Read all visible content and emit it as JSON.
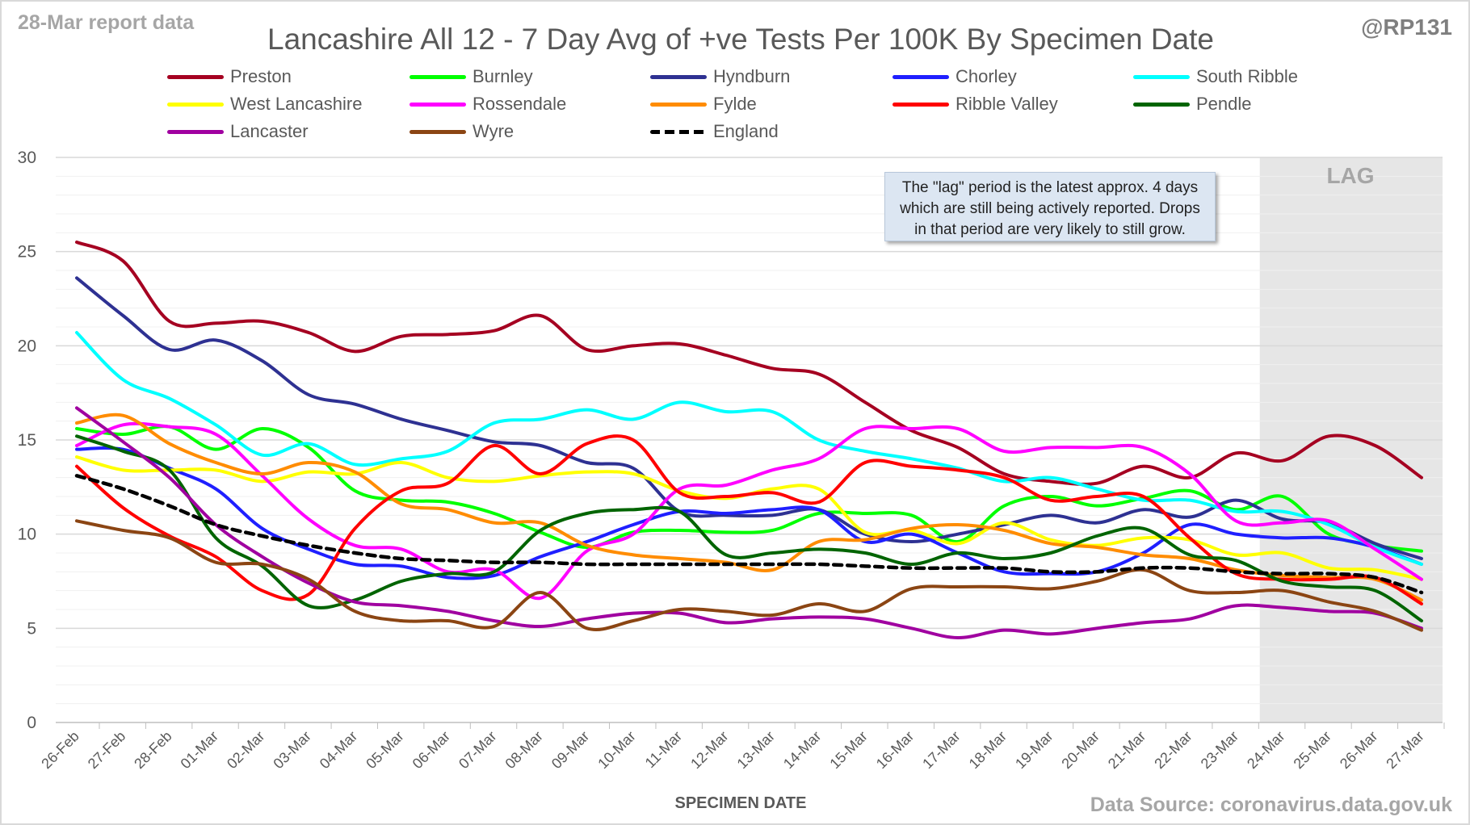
{
  "header": {
    "report_label": "28-Mar report data",
    "handle": "@RP131",
    "source": "Data Source: coronavirus.data.gov.uk"
  },
  "annotation": {
    "lines": [
      "The \"lag\" period is the latest approx. 4 days",
      "which are still being actively reported.  Drops",
      "in that period are very likely to still grow."
    ],
    "lag_label": "LAG",
    "lag_start": "24-Mar"
  },
  "chart_data": {
    "type": "line",
    "title": "Lancashire All 12 - 7 Day Avg of +ve Tests Per 100K By Specimen Date",
    "xlabel": "SPECIMEN DATE",
    "ylabel": "",
    "ylim": [
      0,
      30
    ],
    "yticks": [
      0,
      5,
      10,
      15,
      20,
      25,
      30
    ],
    "grid": true,
    "legend": "top",
    "categories": [
      "26-Feb",
      "27-Feb",
      "28-Feb",
      "01-Mar",
      "02-Mar",
      "03-Mar",
      "04-Mar",
      "05-Mar",
      "06-Mar",
      "07-Mar",
      "08-Mar",
      "09-Mar",
      "10-Mar",
      "11-Mar",
      "12-Mar",
      "13-Mar",
      "14-Mar",
      "15-Mar",
      "16-Mar",
      "17-Mar",
      "18-Mar",
      "19-Mar",
      "20-Mar",
      "21-Mar",
      "22-Mar",
      "23-Mar",
      "24-Mar",
      "25-Mar",
      "26-Mar",
      "27-Mar"
    ],
    "series": [
      {
        "name": "Preston",
        "color": "#a50021",
        "values": [
          25.5,
          24.5,
          21.3,
          21.2,
          21.3,
          20.7,
          19.7,
          20.5,
          20.6,
          20.8,
          21.6,
          19.8,
          20.0,
          20.1,
          19.5,
          18.8,
          18.5,
          17.0,
          15.5,
          14.6,
          13.2,
          12.8,
          12.7,
          13.6,
          13.0,
          14.3,
          13.9,
          15.2,
          14.7,
          13.0
        ]
      },
      {
        "name": "Burnley",
        "color": "#00ff00",
        "values": [
          15.6,
          15.3,
          15.7,
          14.5,
          15.6,
          14.6,
          12.3,
          11.8,
          11.7,
          11.1,
          10.1,
          9.3,
          10.1,
          10.2,
          10.1,
          10.2,
          11.1,
          11.1,
          11.0,
          9.6,
          11.5,
          12.0,
          11.5,
          11.9,
          12.3,
          11.3,
          12.0,
          10.0,
          9.4,
          9.1
        ]
      },
      {
        "name": "Hyndburn",
        "color": "#2e3192",
        "values": [
          23.6,
          21.6,
          19.8,
          20.3,
          19.2,
          17.4,
          16.9,
          16.1,
          15.5,
          14.9,
          14.7,
          13.8,
          13.5,
          11.2,
          11.0,
          11.0,
          11.3,
          10.0,
          9.6,
          10.0,
          10.5,
          11.0,
          10.6,
          11.3,
          10.9,
          11.8,
          10.8,
          10.6,
          9.5,
          8.7
        ]
      },
      {
        "name": "Chorley",
        "color": "#1f1fff",
        "values": [
          14.5,
          14.5,
          13.5,
          12.4,
          10.3,
          9.2,
          8.4,
          8.3,
          7.7,
          7.8,
          8.8,
          9.6,
          10.5,
          11.2,
          11.1,
          11.3,
          11.3,
          9.6,
          10.0,
          9.0,
          8.0,
          7.9,
          8.0,
          9.0,
          10.5,
          10.0,
          9.8,
          9.8,
          9.3,
          8.4
        ]
      },
      {
        "name": "South Ribble",
        "color": "#00ffff",
        "values": [
          20.7,
          18.2,
          17.2,
          15.8,
          14.2,
          14.8,
          13.7,
          14.0,
          14.4,
          15.9,
          16.1,
          16.6,
          16.1,
          17.0,
          16.5,
          16.5,
          15.0,
          14.4,
          14.0,
          13.5,
          12.8,
          13.0,
          12.4,
          11.8,
          11.8,
          11.2,
          11.2,
          10.5,
          9.3,
          8.4
        ]
      },
      {
        "name": "West Lancashire",
        "color": "#ffff00",
        "values": [
          14.1,
          13.4,
          13.4,
          13.4,
          12.8,
          13.3,
          13.2,
          13.8,
          13.0,
          12.8,
          13.1,
          13.3,
          13.2,
          12.3,
          11.9,
          12.4,
          12.4,
          10.1,
          10.2,
          9.5,
          10.6,
          9.7,
          9.4,
          9.8,
          9.7,
          8.9,
          9.0,
          8.2,
          8.1,
          7.6
        ]
      },
      {
        "name": "Rossendale",
        "color": "#ff00ff",
        "values": [
          14.7,
          15.8,
          15.7,
          15.3,
          13.1,
          10.8,
          9.4,
          9.2,
          8.0,
          8.1,
          6.6,
          9.1,
          10.0,
          12.4,
          12.6,
          13.4,
          14.0,
          15.6,
          15.6,
          15.6,
          14.4,
          14.6,
          14.6,
          14.6,
          13.2,
          10.7,
          10.6,
          10.7,
          9.2,
          7.6
        ]
      },
      {
        "name": "Fylde",
        "color": "#ff8c00",
        "values": [
          15.9,
          16.3,
          14.8,
          13.8,
          13.2,
          13.8,
          13.3,
          11.6,
          11.3,
          10.6,
          10.6,
          9.4,
          8.9,
          8.7,
          8.5,
          8.1,
          9.6,
          9.7,
          10.3,
          10.5,
          10.2,
          9.5,
          9.3,
          8.9,
          8.7,
          8.1,
          7.8,
          7.7,
          7.6,
          6.5
        ]
      },
      {
        "name": "Ribble Valley",
        "color": "#ff0000",
        "values": [
          13.6,
          11.4,
          9.9,
          8.8,
          7.0,
          6.8,
          10.3,
          12.3,
          12.7,
          14.7,
          13.2,
          14.8,
          15.0,
          12.2,
          12.0,
          12.2,
          11.7,
          13.8,
          13.6,
          13.4,
          13.0,
          11.8,
          12.0,
          12.0,
          9.8,
          7.9,
          7.6,
          7.6,
          7.7,
          6.3
        ]
      },
      {
        "name": "Pendle",
        "color": "#006400",
        "values": [
          15.2,
          14.4,
          13.4,
          9.8,
          8.3,
          6.2,
          6.5,
          7.5,
          7.9,
          8.0,
          10.2,
          11.1,
          11.3,
          11.2,
          8.9,
          9.0,
          9.2,
          9.0,
          8.4,
          9.0,
          8.7,
          9.0,
          9.9,
          10.3,
          8.9,
          8.6,
          7.5,
          7.2,
          7.0,
          5.4
        ]
      },
      {
        "name": "Lancaster",
        "color": "#a000a0",
        "values": [
          16.7,
          14.9,
          13.0,
          10.5,
          8.8,
          7.4,
          6.4,
          6.2,
          5.9,
          5.4,
          5.1,
          5.5,
          5.8,
          5.8,
          5.3,
          5.5,
          5.6,
          5.5,
          5.0,
          4.5,
          4.9,
          4.7,
          5.0,
          5.3,
          5.5,
          6.2,
          6.1,
          5.9,
          5.8,
          5.0
        ]
      },
      {
        "name": "Wyre",
        "color": "#8b4513",
        "values": [
          10.7,
          10.2,
          9.8,
          8.5,
          8.4,
          7.6,
          5.9,
          5.4,
          5.4,
          5.1,
          6.9,
          5.0,
          5.4,
          6.0,
          5.9,
          5.7,
          6.3,
          5.9,
          7.1,
          7.2,
          7.2,
          7.1,
          7.5,
          8.1,
          7.0,
          6.9,
          7.0,
          6.4,
          5.9,
          4.9
        ]
      },
      {
        "name": "England",
        "color": "#000000",
        "dashed": true,
        "values": [
          13.1,
          12.4,
          11.5,
          10.5,
          9.9,
          9.4,
          9.0,
          8.7,
          8.6,
          8.5,
          8.5,
          8.4,
          8.4,
          8.4,
          8.4,
          8.4,
          8.4,
          8.3,
          8.2,
          8.2,
          8.2,
          8.0,
          8.0,
          8.2,
          8.2,
          8.0,
          7.9,
          7.9,
          7.7,
          6.9
        ]
      }
    ]
  }
}
